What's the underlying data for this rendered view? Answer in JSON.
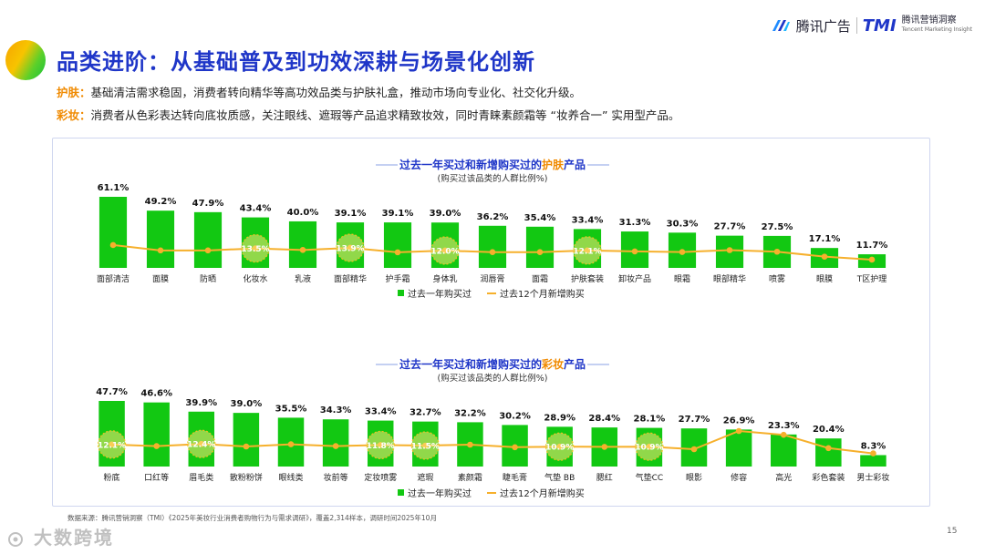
{
  "header": {
    "title": "品类进阶：从基础普及到功效深耕与场景化创新",
    "brand_left": "腾讯广告",
    "brand_tmi": "TMI",
    "brand_cn": "腾讯营销洞察",
    "brand_en": "Tencent Marketing Insight"
  },
  "bullets": [
    {
      "label": "护肤：",
      "text": "基础清洁需求稳固，消费者转向精华等高功效品类与护肤礼盒，推动市场向专业化、社交化升级。"
    },
    {
      "label": "彩妆：",
      "text": "消费者从色彩表达转向底妆质感，关注眼线、遮瑕等产品追求精致妆效，同时青睐素颜霜等 “妆养合一” 实用型产品。"
    }
  ],
  "colors": {
    "bar": "#12c812",
    "line": "#f6b02c",
    "title": "#1f36c8",
    "accent": "#f08a00"
  },
  "chart_data": [
    {
      "type": "bar",
      "title_pre": "过去一年买过和新增购买过的",
      "title_hl": "护肤",
      "title_post": "产品",
      "subtitle": "(购买过该品类的人群比例%)",
      "categories": [
        "面部清洁",
        "面膜",
        "防晒",
        "化妆水",
        "乳液",
        "面部精华",
        "护手霜",
        "身体乳",
        "润唇膏",
        "面霜",
        "护肤套装",
        "卸妆产品",
        "眼霜",
        "眼部精华",
        "喷雾",
        "眼膜",
        "T区护理"
      ],
      "series": [
        {
          "name": "过去一年购买过",
          "type": "bar",
          "values": [
            61.1,
            49.2,
            47.9,
            43.4,
            40.0,
            39.1,
            39.1,
            39.0,
            36.2,
            35.4,
            33.4,
            31.3,
            30.3,
            27.7,
            27.5,
            17.1,
            11.7
          ],
          "labels": [
            "61.1%",
            "49.2%",
            "47.9%",
            "43.4%",
            "40.0%",
            "39.1%",
            "39.1%",
            "39.0%",
            "36.2%",
            "35.4%",
            "33.4%",
            "31.3%",
            "30.3%",
            "27.7%",
            "27.5%",
            "17.1%",
            "11.7%"
          ]
        },
        {
          "name": "过去12个月新增购买",
          "type": "line",
          "values": [
            15.8,
            12.1,
            12.1,
            13.5,
            12.4,
            13.9,
            10.8,
            12.0,
            10.9,
            10.9,
            12.1,
            11.4,
            11.0,
            12.3,
            11.2,
            7.8,
            5.7
          ]
        }
      ],
      "highlights": [
        {
          "index": 3,
          "label": "13.5%"
        },
        {
          "index": 5,
          "label": "13.9%"
        },
        {
          "index": 7,
          "label": "12.0%"
        },
        {
          "index": 10,
          "label": "12.1%"
        }
      ],
      "ylim": [
        0,
        65
      ]
    },
    {
      "type": "bar",
      "title_pre": "过去一年买过和新增购买过的",
      "title_hl": "彩妆",
      "title_post": "产品",
      "subtitle": "(购买过该品类的人群比例%)",
      "categories": [
        "粉底",
        "口红等",
        "眉毛类",
        "散粉粉饼",
        "眼线类",
        "妆前等",
        "定妆喷雾",
        "遮瑕",
        "素颜霜",
        "睫毛膏",
        "气垫 BB",
        "腮红",
        "气垫CC",
        "眼影",
        "修容",
        "高光",
        "彩色套装",
        "男士彩妆"
      ],
      "series": [
        {
          "name": "过去一年购买过",
          "type": "bar",
          "values": [
            47.7,
            46.6,
            39.9,
            39.0,
            35.5,
            34.3,
            33.4,
            32.7,
            32.2,
            30.2,
            28.9,
            28.4,
            28.1,
            27.7,
            26.9,
            23.3,
            20.4,
            8.3
          ],
          "labels": [
            "47.7%",
            "46.6%",
            "39.9%",
            "39.0%",
            "35.5%",
            "34.3%",
            "33.4%",
            "32.7%",
            "32.2%",
            "30.2%",
            "28.9%",
            "28.4%",
            "28.1%",
            "27.7%",
            "26.9%",
            "23.3%",
            "20.4%",
            "8.3%"
          ]
        },
        {
          "name": "过去12个月新增购买",
          "type": "line",
          "values": [
            12.1,
            11.2,
            12.4,
            11.0,
            12.2,
            11.2,
            11.8,
            11.5,
            12.0,
            10.6,
            10.9,
            10.8,
            10.9,
            9.5,
            19.5,
            17.4,
            10.1,
            7.2
          ]
        }
      ],
      "highlights": [
        {
          "index": 0,
          "label": "12.1%"
        },
        {
          "index": 2,
          "label": "12.4%"
        },
        {
          "index": 6,
          "label": "11.8%"
        },
        {
          "index": 7,
          "label": "11.5%"
        },
        {
          "index": 10,
          "label": "10.9%"
        },
        {
          "index": 12,
          "label": "10.9%"
        }
      ],
      "ylim": [
        0,
        50
      ]
    }
  ],
  "footer": {
    "source": "数据来源：腾讯营销洞察（TMI）《2025年美妆行业消费者购物行为与需求调研》，覆盖2,314样本，调研时间2025年10月",
    "page": "15",
    "watermark": "大数跨境"
  }
}
